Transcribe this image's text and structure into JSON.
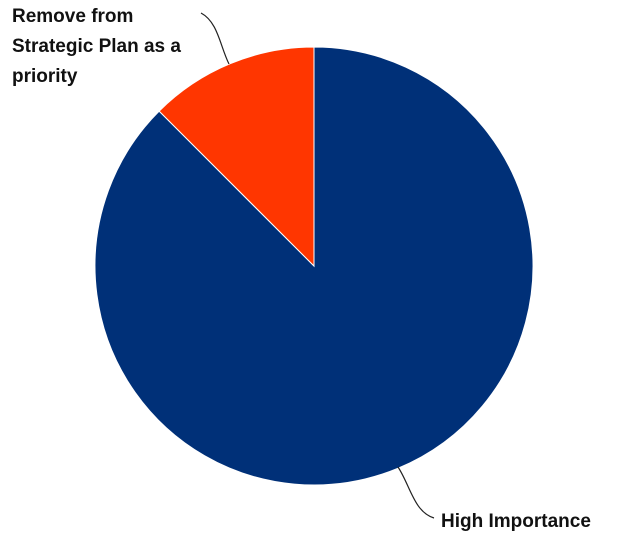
{
  "chart_data": {
    "type": "pie",
    "title": "",
    "start_angle_deg": 0,
    "direction": "clockwise",
    "slices": [
      {
        "label": "High Importance",
        "label_lines": [
          "High Importance"
        ],
        "value": 87.5,
        "color": "#003078"
      },
      {
        "label": "Remove from Strategic Plan as a priority",
        "label_lines": [
          "Remove from",
          "Strategic Plan as a",
          "priority"
        ],
        "value": 12.5,
        "color": "#ff3600"
      }
    ],
    "legend": "none",
    "data_labels": "outside-with-leader-lines"
  }
}
